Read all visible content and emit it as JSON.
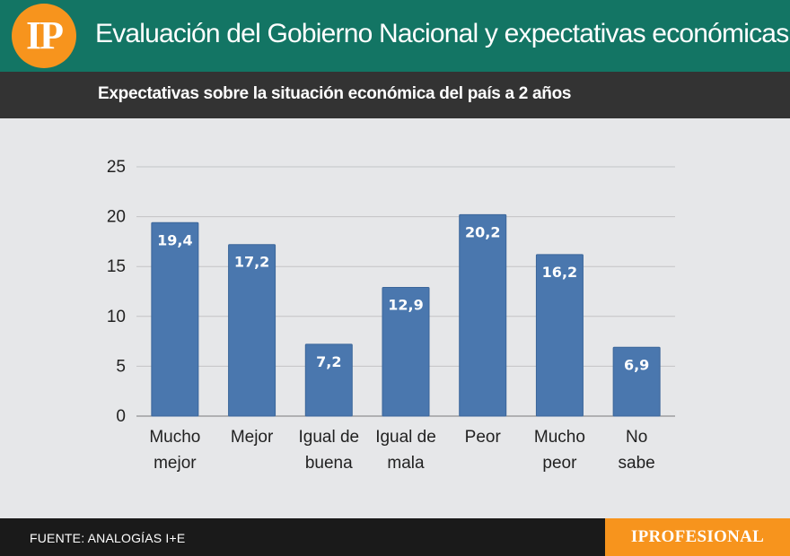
{
  "header": {
    "logo_text": "IP",
    "title": "Evaluación del Gobierno Nacional y expectativas económicas"
  },
  "subheader": {
    "title": "Expectativas sobre la situación económica del país a 2 años"
  },
  "footer": {
    "source": "FUENTE: ANALOGÍAS I+E",
    "brand": "IPROFESIONAL"
  },
  "colors": {
    "header_bg": "#137564",
    "logo_orange": "#f7941d",
    "subheader_bg": "#333333",
    "chart_bg": "#e6e7e9",
    "bar": "#4a77ae",
    "footer_bg": "#1a1a1a"
  },
  "chart_data": {
    "type": "bar",
    "categories": [
      [
        "Mucho",
        "mejor"
      ],
      [
        "Mejor"
      ],
      [
        "Igual de",
        "buena"
      ],
      [
        "Igual de",
        "mala"
      ],
      [
        "Peor"
      ],
      [
        "Mucho",
        "peor"
      ],
      [
        "No",
        "sabe"
      ]
    ],
    "values": [
      19.4,
      17.2,
      7.2,
      12.9,
      20.2,
      16.2,
      6.9
    ],
    "value_labels": [
      "19,4",
      "17,2",
      "7,2",
      "12,9",
      "20,2",
      "16,2",
      "6,9"
    ],
    "yticks": [
      0,
      5,
      10,
      15,
      20,
      25
    ],
    "ylim": [
      0,
      25
    ],
    "grid": true,
    "legend": false,
    "title": "",
    "xlabel": "",
    "ylabel": ""
  }
}
